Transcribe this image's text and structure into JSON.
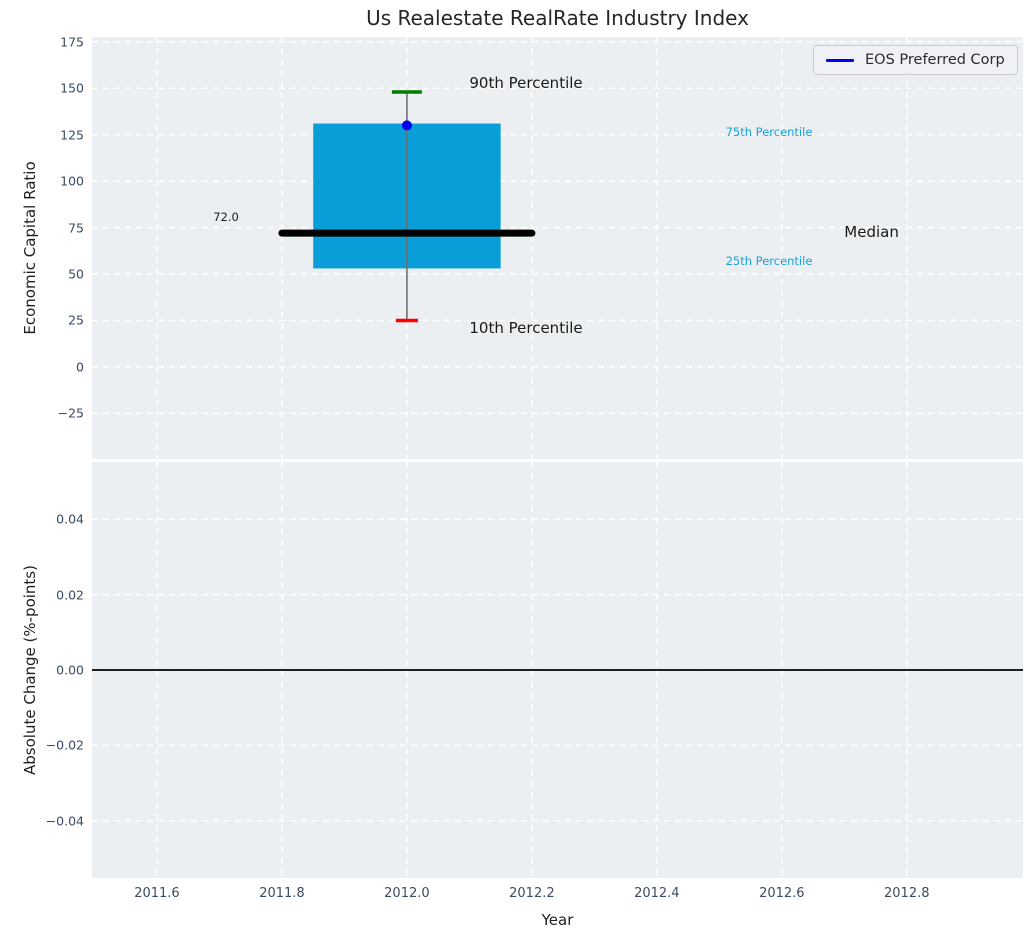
{
  "title": "Us Realestate RealRate Industry Index",
  "legend": {
    "label": "EOS Preferred Corp",
    "line_color": "#0000ee"
  },
  "colors": {
    "panel_bg": "#eceff1",
    "grid": "#ffffff",
    "box_fill": "#0a9ed9",
    "median_line": "#000000",
    "whisker": "#6f6f6f",
    "cap_90": "#007d00",
    "cap_10": "#ff0000",
    "company_point": "#0000ee",
    "tick_text": "#3c4b63",
    "label_text": "#1f1f1f",
    "percentile_text": "#1b9ed8",
    "zero_line": "#000000"
  },
  "xticks": [
    {
      "v": 2011.6,
      "label": "2011.6"
    },
    {
      "v": 2011.8,
      "label": "2011.8"
    },
    {
      "v": 2012.0,
      "label": "2012.0"
    },
    {
      "v": 2012.2,
      "label": "2012.2"
    },
    {
      "v": 2012.4,
      "label": "2012.4"
    },
    {
      "v": 2012.6,
      "label": "2012.6"
    },
    {
      "v": 2012.8,
      "label": "2012.8"
    }
  ],
  "xlim": [
    2011.496,
    2012.986
  ],
  "chart_data": [
    {
      "type": "boxplot",
      "title": "Us Realestate RealRate Industry Index",
      "ylabel": "Economic Capital Ratio",
      "xlabel": "",
      "grid": true,
      "legend_position": "upper right",
      "ylim": [
        -49.6,
        177.6
      ],
      "yticks": [
        {
          "v": 175,
          "label": "175"
        },
        {
          "v": 150,
          "label": "150"
        },
        {
          "v": 125,
          "label": "125"
        },
        {
          "v": 100,
          "label": "100"
        },
        {
          "v": 75,
          "label": "75"
        },
        {
          "v": 50,
          "label": "50"
        },
        {
          "v": 25,
          "label": "25"
        },
        {
          "v": 0,
          "label": "0"
        },
        {
          "v": -25,
          "label": "−25"
        }
      ],
      "box": {
        "x": 2012.0,
        "p10": 25,
        "p25": 53,
        "median": 72.0,
        "p75": 131,
        "p90": 148,
        "box_x_span": [
          2011.85,
          2012.15
        ],
        "median_x_span": [
          2011.8,
          2012.2
        ]
      },
      "series": [
        {
          "name": "EOS Preferred Corp",
          "x": 2012.0,
          "value": 130
        }
      ],
      "annotations": [
        {
          "id": "p90",
          "text": "90th Percentile",
          "x": 2012.1,
          "y": 153,
          "color": "#1a1a1a",
          "size": 15
        },
        {
          "id": "p10",
          "text": "10th Percentile",
          "x": 2012.1,
          "y": 21,
          "color": "#1a1a1a",
          "size": 15
        },
        {
          "id": "p75",
          "text": "75th Percentile",
          "x": 2012.51,
          "y": 126.5,
          "color": "#1b9ed8",
          "size": 11.5
        },
        {
          "id": "p25",
          "text": "25th Percentile",
          "x": 2012.51,
          "y": 57,
          "color": "#1b9ed8",
          "size": 11.5
        },
        {
          "id": "median",
          "text": "Median",
          "x": 2012.7,
          "y": 72.5,
          "color": "#1a1a1a",
          "size": 15
        },
        {
          "id": "median-value",
          "text": "72.0",
          "x": 2011.69,
          "y": 80.5,
          "color": "#1a1a1a",
          "size": 11.5
        }
      ]
    },
    {
      "type": "line",
      "ylabel": "Absolute Change (%-points)",
      "xlabel": "Year",
      "grid": true,
      "ylim": [
        -0.0552,
        0.0552
      ],
      "yticks": [
        {
          "v": 0.04,
          "label": "0.04"
        },
        {
          "v": 0.02,
          "label": "0.02"
        },
        {
          "v": 0.0,
          "label": "0.00"
        },
        {
          "v": -0.02,
          "label": "−0.02"
        },
        {
          "v": -0.04,
          "label": "−0.04"
        }
      ],
      "zero_line_y": 0.0,
      "series": []
    }
  ]
}
